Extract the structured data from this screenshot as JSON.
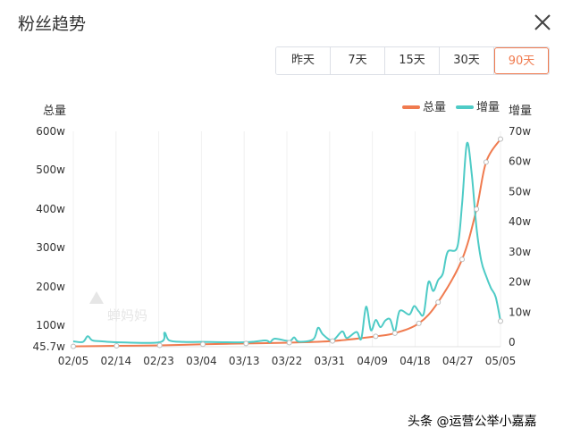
{
  "panel": {
    "title": "粉丝趋势"
  },
  "range_tabs": [
    {
      "label": "昨天",
      "active": false
    },
    {
      "label": "7天",
      "active": false
    },
    {
      "label": "15天",
      "active": false
    },
    {
      "label": "30天",
      "active": false
    },
    {
      "label": "90天",
      "active": true
    }
  ],
  "watermark": {
    "text": "蝉妈妈"
  },
  "footer": {
    "text": "头条 @运营公举小嘉嘉"
  },
  "colors": {
    "total": "#f07b4f",
    "increment": "#4ecbc6",
    "accent": "#f07b4f"
  },
  "chart_data": {
    "type": "line",
    "title": "",
    "ylabel_left": "总量",
    "ylabel_right": "增量",
    "legend": [
      "总量",
      "增量"
    ],
    "legend_position": "top-right",
    "grid": true,
    "x_ticks": [
      "02/05",
      "02/14",
      "02/23",
      "03/04",
      "03/13",
      "03/22",
      "03/31",
      "04/09",
      "04/18",
      "04/27",
      "05/05"
    ],
    "left_axis": {
      "ticks": [
        "45.7w",
        "100w",
        "200w",
        "300w",
        "400w",
        "500w",
        "600w"
      ],
      "values": [
        45.7,
        100,
        200,
        300,
        400,
        500,
        600
      ],
      "range": [
        45.7,
        600
      ]
    },
    "right_axis": {
      "ticks": [
        "0",
        "10w",
        "20w",
        "30w",
        "40w",
        "50w",
        "60w",
        "70w"
      ],
      "values": [
        0,
        10,
        20,
        30,
        40,
        50,
        60,
        70
      ],
      "range": [
        0,
        70
      ]
    },
    "x_range": [
      0,
      89
    ],
    "series": [
      {
        "name": "总量",
        "axis": "left",
        "x": [
          0,
          9,
          18,
          27,
          36,
          45,
          54,
          63,
          67,
          72,
          76,
          81,
          84,
          86,
          89
        ],
        "values": [
          46.5,
          48,
          49,
          52,
          54,
          56,
          60,
          72,
          80,
          105,
          160,
          270,
          400,
          520,
          580
        ]
      },
      {
        "name": "增量",
        "axis": "right",
        "x": [
          0,
          2,
          3,
          4,
          6,
          9,
          18,
          19,
          20,
          23,
          27,
          36,
          40,
          41,
          42,
          45,
          46,
          47,
          50,
          51,
          52,
          54,
          56,
          57,
          59,
          60,
          61,
          62,
          63,
          64,
          65,
          66,
          67,
          68,
          70,
          71,
          72,
          73,
          74,
          75,
          76,
          77,
          78,
          80,
          81,
          82,
          83,
          84,
          85,
          86,
          87,
          88,
          89
        ],
        "values": [
          0.3,
          0.1,
          2.0,
          0.6,
          0.3,
          0,
          0,
          3.2,
          0.6,
          0.1,
          0.1,
          0,
          0.6,
          0,
          1.2,
          0.4,
          1.6,
          0.2,
          1.0,
          4.8,
          2.6,
          0.6,
          3.6,
          1.4,
          3.4,
          1.2,
          11.8,
          4.0,
          7.4,
          5.0,
          7.2,
          7.6,
          3.6,
          10.4,
          9.2,
          12.0,
          10.2,
          9.4,
          20.0,
          17.0,
          20.6,
          22.8,
          30.0,
          31.6,
          46.0,
          66.0,
          56.0,
          38.0,
          27.0,
          22.0,
          18.0,
          15.0,
          7.0
        ]
      }
    ]
  }
}
